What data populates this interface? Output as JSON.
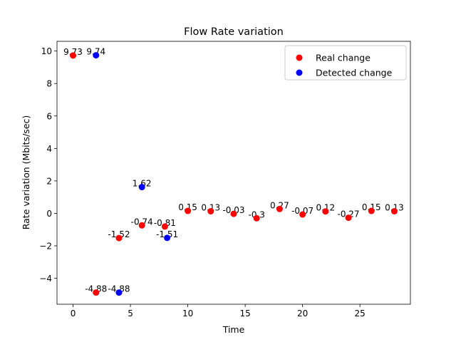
{
  "chart_data": {
    "type": "scatter",
    "title": "Flow Rate variation",
    "xlabel": "Time",
    "ylabel": "Rate variation (Mbits/sec)",
    "xlim": [
      -1.4,
      29.4
    ],
    "ylim": [
      -5.6,
      10.6
    ],
    "x_ticks": [
      0,
      5,
      10,
      15,
      20,
      25
    ],
    "y_ticks": [
      -4,
      -2,
      0,
      2,
      4,
      6,
      8,
      10
    ],
    "x_tick_labels": [
      "0",
      "5",
      "10",
      "15",
      "20",
      "25"
    ],
    "y_tick_labels": [
      "−4",
      "−2",
      "0",
      "2",
      "4",
      "6",
      "8",
      "10"
    ],
    "grid": false,
    "legend_position": "top-right",
    "series": [
      {
        "name": "Real change",
        "color": "#ff0000",
        "points": [
          {
            "x": 0,
            "y": 9.73,
            "label": "9.73"
          },
          {
            "x": 2,
            "y": -4.88,
            "label": "-4.88"
          },
          {
            "x": 4,
            "y": -1.52,
            "label": "-1.52"
          },
          {
            "x": 6,
            "y": -0.74,
            "label": "-0.74"
          },
          {
            "x": 8,
            "y": -0.81,
            "label": "-0.81"
          },
          {
            "x": 10,
            "y": 0.15,
            "label": "0.15"
          },
          {
            "x": 12,
            "y": 0.13,
            "label": "0.13"
          },
          {
            "x": 14,
            "y": -0.03,
            "label": "-0.03"
          },
          {
            "x": 16,
            "y": -0.3,
            "label": "-0.3"
          },
          {
            "x": 18,
            "y": 0.27,
            "label": "0.27"
          },
          {
            "x": 20,
            "y": -0.07,
            "label": "-0.07"
          },
          {
            "x": 22,
            "y": 0.12,
            "label": "0.12"
          },
          {
            "x": 24,
            "y": -0.27,
            "label": "-0.27"
          },
          {
            "x": 26,
            "y": 0.15,
            "label": "0.15"
          },
          {
            "x": 28,
            "y": 0.13,
            "label": "0.13"
          }
        ]
      },
      {
        "name": "Detected change",
        "color": "#0000ff",
        "points": [
          {
            "x": 2,
            "y": 9.74,
            "label": "9.74"
          },
          {
            "x": 4,
            "y": -4.88,
            "label": "-4.88"
          },
          {
            "x": 6,
            "y": 1.62,
            "label": "1.62"
          },
          {
            "x": 8.2,
            "y": -1.51,
            "label": "-1.51"
          }
        ]
      }
    ]
  }
}
